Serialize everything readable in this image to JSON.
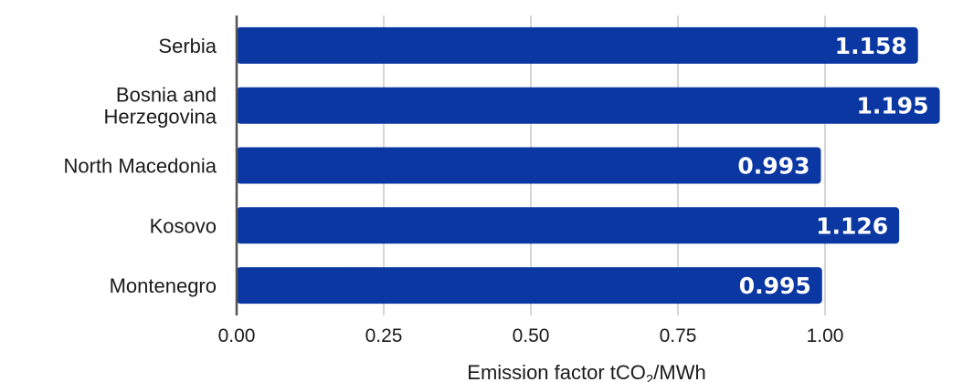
{
  "chart_data": {
    "type": "bar",
    "orientation": "horizontal",
    "categories": [
      [
        "Serbia"
      ],
      [
        "Bosnia and",
        "Herzegovina"
      ],
      [
        "North Macedonia"
      ],
      [
        "Kosovo"
      ],
      [
        "Montenegro"
      ]
    ],
    "values": [
      1.158,
      1.195,
      0.993,
      1.126,
      0.995
    ],
    "value_labels": [
      "1.158",
      "1.195",
      "0.993",
      "1.126",
      "0.995"
    ],
    "xlabel": {
      "main": "Emission factor tCO",
      "subscript": "2",
      "suffix": "/MWh"
    },
    "ylabel": "",
    "xlim": [
      0,
      1.2
    ],
    "xticks": [
      0,
      0.25,
      0.5,
      0.75,
      1.0
    ],
    "xtick_labels": [
      "0.00",
      "0.25",
      "0.50",
      "0.75",
      "1.00"
    ],
    "grid": "vertical",
    "bar_color": "#0b37a3",
    "label_color": "#ffffff"
  }
}
